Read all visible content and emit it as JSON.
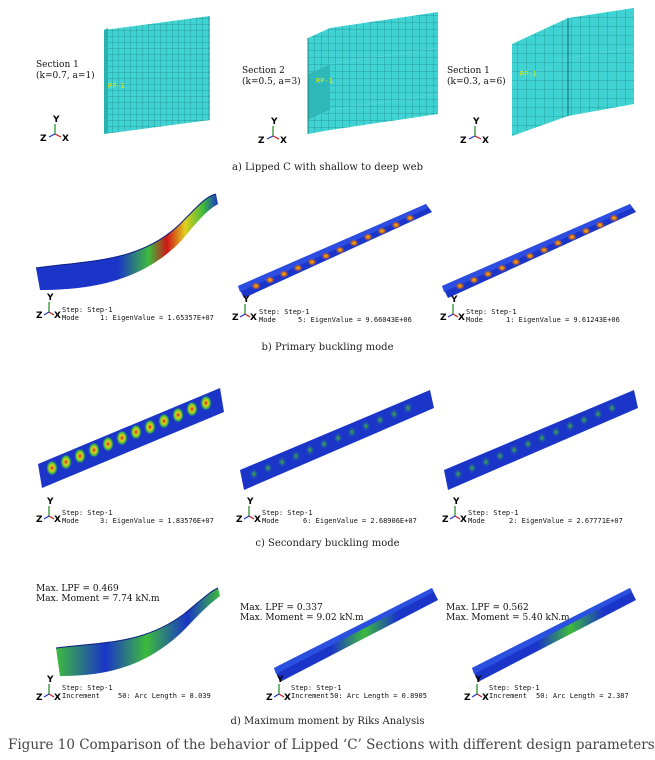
{
  "row_a": {
    "panels": [
      {
        "section_label": "Section 1",
        "params": "(k=0.7, a=1)",
        "rp": "RP-1"
      },
      {
        "section_label": "Section 2",
        "params": "(k=0.5, a=3)",
        "rp": "RP-1"
      },
      {
        "section_label": "Section 1",
        "params": "(k=0.3, a=6)",
        "rp": "RP-1"
      }
    ],
    "caption": "a) Lipped C with shallow to deep web"
  },
  "row_b": {
    "panels": [
      {
        "step": "Step: Step-1",
        "mode": "Mode",
        "value": "1: EigenValue = 1.65357E+07"
      },
      {
        "step": "Step: Step-1",
        "mode": "Mode",
        "value": "5: EigenValue = 9.66043E+06"
      },
      {
        "step": "Step: Step-1",
        "mode": "Mode",
        "value": "1: EigenValue = 9.61243E+06"
      }
    ],
    "caption": "b) Primary buckling mode"
  },
  "row_c": {
    "panels": [
      {
        "step": "Step: Step-1",
        "mode": "Mode",
        "value": "3: EigenValue = 1.83576E+07"
      },
      {
        "step": "Step: Step-1",
        "mode": "Mode",
        "value": "6: EigenValue = 2.68906E+07"
      },
      {
        "step": "Step: Step-1",
        "mode": "Mode",
        "value": "2: EigenValue = 2.67771E+07"
      }
    ],
    "caption": "c) Secondary buckling mode"
  },
  "row_d": {
    "panels": [
      {
        "lpf": "Max. LPF = 0.469",
        "moment": "Max. Moment = 7.74 kN.m",
        "step": "Step: Step-1",
        "inc": "Increment",
        "value": "50: Arc Length = 8.039"
      },
      {
        "lpf": "Max. LPF = 0.337",
        "moment": "Max. Moment = 9.02 kN.m",
        "step": "Step: Step-1",
        "inc": "Increment",
        "value": "50: Arc Length = 0.8905"
      },
      {
        "lpf": "Max. LPF = 0.562",
        "moment": "Max. Moment = 5.40 kN.m",
        "step": "Step: Step-1",
        "inc": "Increment",
        "value": "50: Arc Length = 2.387"
      }
    ],
    "caption": "d) Maximum moment by Riks Analysis"
  },
  "axes": {
    "y": "Y",
    "z": "Z",
    "x": "X"
  },
  "figure_caption": "Figure 10 Comparison of the behavior of Lipped ‘C’ Sections with different design parameters.",
  "colors": {
    "mesh": "#3fd3d3",
    "mesh_line": "#116a6a",
    "blue": "#1a35c8",
    "green": "#3dbb3d",
    "red": "#d01818",
    "yellow": "#e0d020"
  }
}
